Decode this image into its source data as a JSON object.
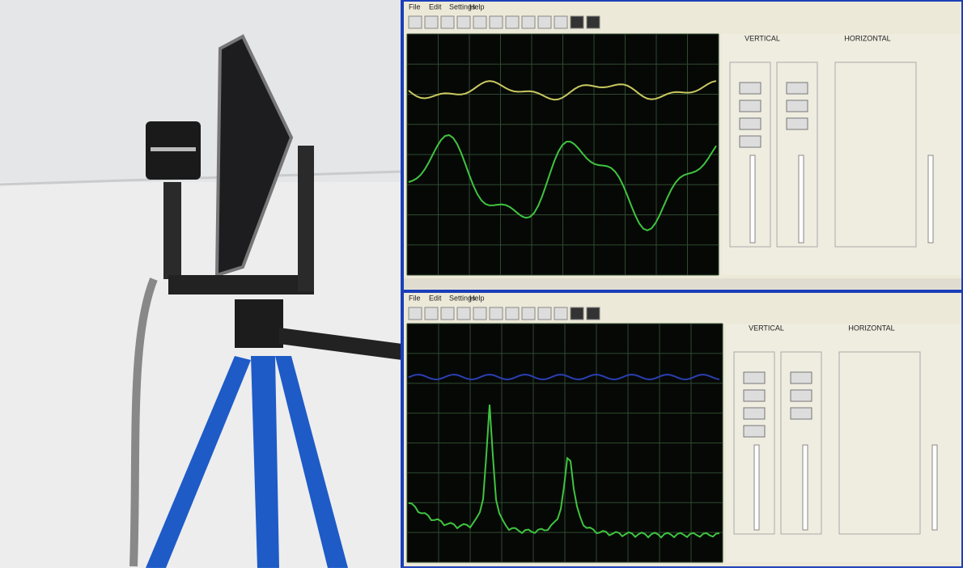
{
  "windows": [
    {
      "menu": [
        "File",
        "Edit",
        "Settings",
        "Help"
      ],
      "panels": [
        "VERTICAL",
        "HORIZONTAL"
      ]
    },
    {
      "menu": [
        "File",
        "Edit",
        "Settings",
        "Help"
      ],
      "panels": [
        "VERTICAL",
        "HORIZONTAL"
      ]
    }
  ]
}
